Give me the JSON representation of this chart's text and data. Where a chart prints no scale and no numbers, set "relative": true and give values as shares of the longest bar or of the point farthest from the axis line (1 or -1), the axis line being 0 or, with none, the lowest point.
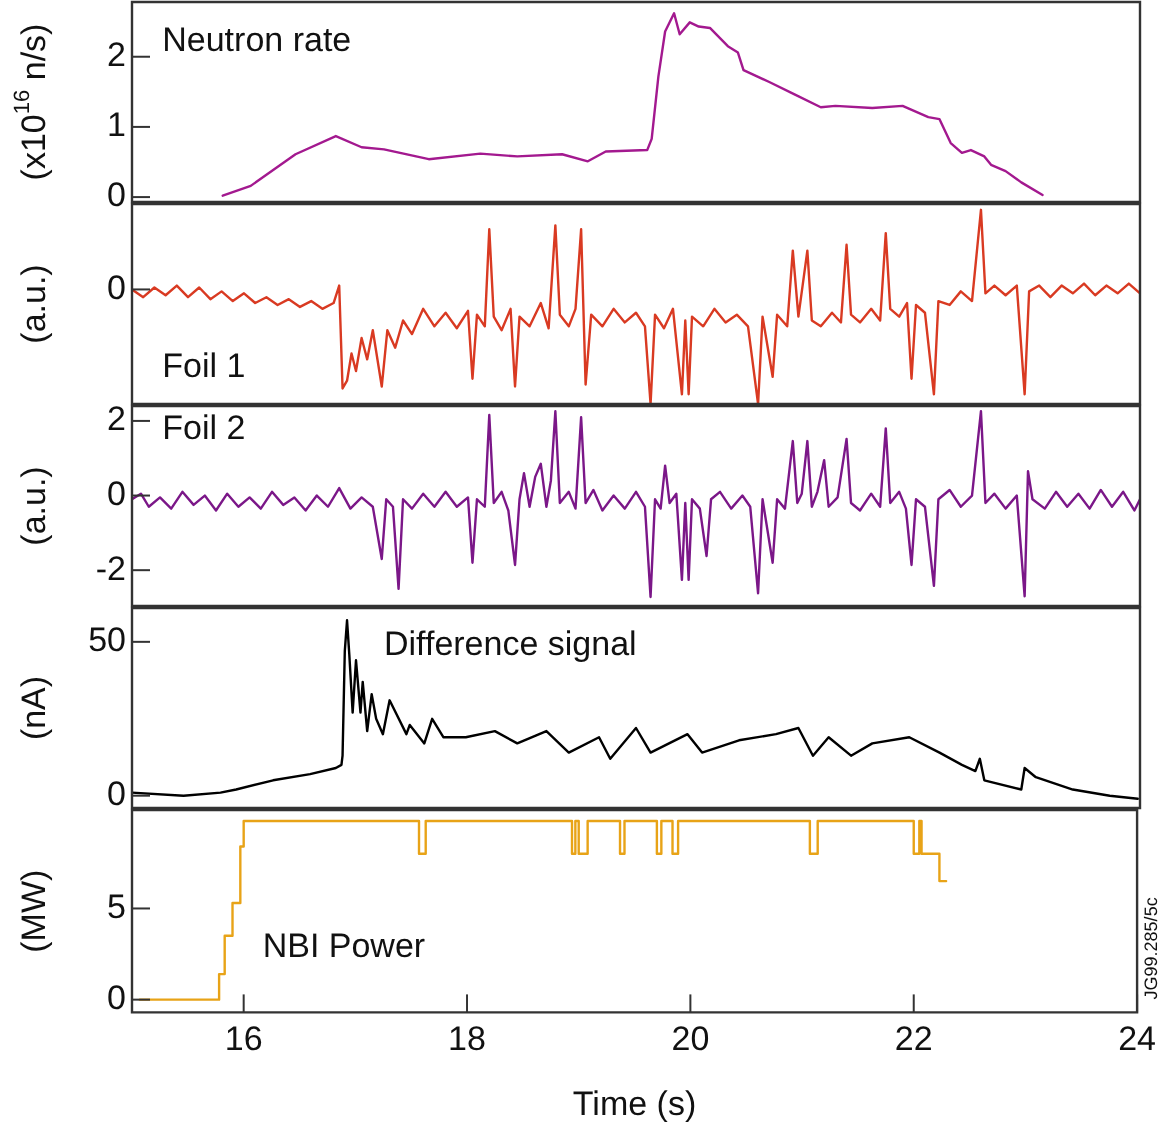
{
  "chart_data": [
    {
      "type": "line",
      "ylabel": "(x10$^{16}$ n/s)",
      "xlim": [
        15,
        24
      ],
      "xticks": [
        16,
        18,
        20,
        22,
        24
      ],
      "ylim": [
        -0.07,
        2.78
      ],
      "yticks": [
        0,
        1,
        2
      ],
      "tick_labels": "y",
      "series": [
        {
          "name": "Neutron rate",
          "color": "#a3198f",
          "x": [
            15.81,
            16.06,
            16.46,
            16.82,
            17.05,
            17.25,
            17.65,
            18.11,
            18.44,
            18.84,
            19.07,
            19.23,
            19.6,
            19.64,
            19.7,
            19.76,
            19.84,
            19.89,
            19.98,
            20.06,
            20.16,
            20.32,
            20.41,
            20.46,
            20.69,
            20.92,
            21.15,
            21.28,
            21.61,
            21.88,
            22.11,
            22.21,
            22.31,
            22.41,
            22.49,
            22.61,
            22.67,
            22.8,
            22.94,
            23.13
          ],
          "values": [
            0.02,
            0.16,
            0.61,
            0.87,
            0.71,
            0.68,
            0.54,
            0.62,
            0.58,
            0.61,
            0.51,
            0.65,
            0.67,
            0.83,
            1.72,
            2.36,
            2.62,
            2.32,
            2.49,
            2.43,
            2.41,
            2.15,
            2.06,
            1.81,
            1.64,
            1.46,
            1.28,
            1.3,
            1.27,
            1.3,
            1.14,
            1.11,
            0.77,
            0.63,
            0.67,
            0.58,
            0.46,
            0.37,
            0.21,
            0.03
          ]
        }
      ]
    },
    {
      "type": "line",
      "ylabel": "(a.u.)",
      "relative": true,
      "xlim": [
        15,
        24
      ],
      "xticks": [
        16,
        18,
        20,
        22,
        24
      ],
      "tick_labels": "y",
      "annotations": [
        "0"
      ],
      "series": [
        {
          "name": "Foil 1",
          "color": "#d93a22",
          "x": [
            15.0,
            15.1,
            15.2,
            15.3,
            15.4,
            15.5,
            15.6,
            15.7,
            15.8,
            15.9,
            16.0,
            16.1,
            16.2,
            16.3,
            16.4,
            16.5,
            16.6,
            16.7,
            16.8,
            16.85,
            16.88,
            16.92,
            16.96,
            17.0,
            17.05,
            17.1,
            17.15,
            17.23,
            17.28,
            17.35,
            17.42,
            17.5,
            17.6,
            17.7,
            17.8,
            17.9,
            18.0,
            18.04,
            18.08,
            18.15,
            18.19,
            18.23,
            18.3,
            18.38,
            18.42,
            18.46,
            18.55,
            18.65,
            18.72,
            18.78,
            18.82,
            18.9,
            18.96,
            19.01,
            19.05,
            19.1,
            19.2,
            19.3,
            19.4,
            19.5,
            19.58,
            19.63,
            19.67,
            19.75,
            19.83,
            19.91,
            19.94,
            19.97,
            20.0,
            20.1,
            20.2,
            20.3,
            20.4,
            20.5,
            20.59,
            20.63,
            20.72,
            20.76,
            20.85,
            20.9,
            20.95,
            21.03,
            21.07,
            21.15,
            21.25,
            21.33,
            21.38,
            21.42,
            21.5,
            21.6,
            21.68,
            21.73,
            21.77,
            21.85,
            21.92,
            21.96,
            22.0,
            22.08,
            22.16,
            22.2,
            22.3,
            22.4,
            22.5,
            22.58,
            22.62,
            22.7,
            22.8,
            22.9,
            22.97,
            23.01,
            23.1,
            23.2,
            23.3,
            23.4,
            23.5,
            23.6,
            23.7,
            23.8,
            23.9,
            24.0
          ],
          "values": [
            0.59,
            0.55,
            0.6,
            0.56,
            0.61,
            0.55,
            0.6,
            0.54,
            0.58,
            0.53,
            0.57,
            0.52,
            0.55,
            0.51,
            0.54,
            0.5,
            0.53,
            0.49,
            0.52,
            0.61,
            0.08,
            0.12,
            0.26,
            0.17,
            0.34,
            0.23,
            0.38,
            0.09,
            0.38,
            0.29,
            0.43,
            0.36,
            0.49,
            0.4,
            0.47,
            0.39,
            0.48,
            0.13,
            0.46,
            0.4,
            0.9,
            0.45,
            0.38,
            0.49,
            0.09,
            0.45,
            0.4,
            0.52,
            0.39,
            0.92,
            0.46,
            0.4,
            0.49,
            0.9,
            0.1,
            0.46,
            0.4,
            0.49,
            0.42,
            0.47,
            0.4,
            0,
            0.46,
            0.39,
            0.49,
            0.05,
            0.43,
            0.05,
            0.45,
            0.4,
            0.49,
            0.42,
            0.46,
            0.4,
            0,
            0.45,
            0.14,
            0.46,
            0.4,
            0.79,
            0.45,
            0.79,
            0.43,
            0.4,
            0.47,
            0.42,
            0.82,
            0.46,
            0.42,
            0.49,
            0.43,
            0.88,
            0.49,
            0.45,
            0.52,
            0.13,
            0.51,
            0.47,
            0.05,
            0.53,
            0.51,
            0.58,
            0.53,
            1,
            0.57,
            0.61,
            0.56,
            0.61,
            0.05,
            0.58,
            0.61,
            0.55,
            0.61,
            0.57,
            0.62,
            0.56,
            0.61,
            0.57,
            0.62,
            0.57
          ]
        }
      ]
    },
    {
      "type": "line",
      "ylabel": "(a.u.)",
      "xlim": [
        15,
        24
      ],
      "xticks": [
        16,
        18,
        20,
        22,
        24
      ],
      "ylim": [
        -2.96,
        2.4
      ],
      "yticks": [
        -2,
        0,
        2
      ],
      "tick_labels": "y",
      "series": [
        {
          "name": "Foil 2",
          "color": "#7b1788",
          "x": [
            15.0,
            15.08,
            15.15,
            15.25,
            15.35,
            15.45,
            15.55,
            15.65,
            15.75,
            15.85,
            15.95,
            16.05,
            16.15,
            16.25,
            16.35,
            16.45,
            16.55,
            16.65,
            16.75,
            16.85,
            16.95,
            17.05,
            17.15,
            17.23,
            17.27,
            17.33,
            17.38,
            17.42,
            17.5,
            17.6,
            17.7,
            17.8,
            17.9,
            18.0,
            18.04,
            18.08,
            18.15,
            18.19,
            18.23,
            18.3,
            18.36,
            18.42,
            18.46,
            18.5,
            18.55,
            18.6,
            18.65,
            18.7,
            18.74,
            18.78,
            18.82,
            18.9,
            18.96,
            19.01,
            19.05,
            19.12,
            19.2,
            19.3,
            19.4,
            19.5,
            19.58,
            19.63,
            19.67,
            19.72,
            19.76,
            19.8,
            19.86,
            19.91,
            19.94,
            19.97,
            20.0,
            20.07,
            20.13,
            20.17,
            20.25,
            20.35,
            20.45,
            20.52,
            20.59,
            20.63,
            20.72,
            20.76,
            20.83,
            20.9,
            20.94,
            20.98,
            21.03,
            21.07,
            21.12,
            21.18,
            21.22,
            21.3,
            21.38,
            21.42,
            21.5,
            21.6,
            21.68,
            21.73,
            21.77,
            21.85,
            21.91,
            21.96,
            22.0,
            22.08,
            22.16,
            22.2,
            22.3,
            22.4,
            22.5,
            22.58,
            22.62,
            22.7,
            22.8,
            22.9,
            22.97,
            23.0,
            23.04,
            23.15,
            23.25,
            23.35,
            23.45,
            23.55,
            23.65,
            23.75,
            23.85,
            23.95,
            24.0
          ],
          "values": [
            -0.1,
            0.05,
            -0.3,
            -0.05,
            -0.35,
            0.1,
            -0.25,
            0.0,
            -0.4,
            0.05,
            -0.3,
            -0.05,
            -0.35,
            0.1,
            -0.25,
            -0.05,
            -0.4,
            0.0,
            -0.3,
            0.2,
            -0.35,
            -0.05,
            -0.3,
            -1.7,
            -0.1,
            -0.3,
            -2.5,
            -0.1,
            -0.35,
            0.05,
            -0.3,
            0.1,
            -0.3,
            -0.05,
            -1.8,
            -0.1,
            -0.3,
            2.16,
            -0.2,
            0.1,
            -0.4,
            -1.86,
            -0.1,
            0.6,
            -0.3,
            0.5,
            0.85,
            -0.3,
            0.4,
            2.26,
            -0.2,
            0.1,
            -0.35,
            2.1,
            -0.2,
            0.15,
            -0.4,
            0.0,
            -0.35,
            0.1,
            -0.3,
            -2.72,
            -0.1,
            -0.35,
            0.8,
            -0.2,
            0.05,
            -2.26,
            -0.2,
            -2.26,
            -0.1,
            -0.35,
            -1.62,
            -0.1,
            0.1,
            -0.35,
            0.0,
            -0.3,
            -2.62,
            -0.1,
            -1.8,
            -0.1,
            -0.35,
            1.46,
            -0.2,
            0.05,
            1.46,
            -0.3,
            0.1,
            0.95,
            -0.3,
            -0.05,
            1.52,
            -0.2,
            -0.4,
            0.05,
            -0.3,
            1.8,
            -0.2,
            0.1,
            -0.35,
            -1.86,
            -0.1,
            -0.3,
            -2.42,
            -0.1,
            0.15,
            -0.3,
            0.0,
            2.26,
            -0.2,
            0.05,
            -0.35,
            0.0,
            -2.7,
            0.65,
            -0.1,
            -0.35,
            0.1,
            -0.3,
            0.05,
            -0.35,
            0.15,
            -0.3,
            0.1,
            -0.4,
            -0.1
          ]
        }
      ]
    },
    {
      "type": "line",
      "ylabel": "(nA)",
      "xlim": [
        15,
        24
      ],
      "xticks": [
        16,
        18,
        20,
        22,
        24
      ],
      "ylim": [
        -4,
        61
      ],
      "yticks": [
        0,
        50
      ],
      "tick_labels": "y",
      "series": [
        {
          "name": "Difference signal",
          "color": "#000000",
          "x": [
            15.0,
            15.46,
            15.79,
            15.93,
            16.26,
            16.59,
            16.82,
            16.87,
            16.88,
            16.9,
            16.92,
            16.94,
            16.97,
            17.0,
            17.04,
            17.06,
            17.1,
            17.14,
            17.18,
            17.24,
            17.3,
            17.45,
            17.48,
            17.61,
            17.68,
            17.78,
            17.98,
            18.24,
            18.44,
            18.7,
            18.9,
            19.17,
            19.27,
            19.5,
            19.63,
            19.96,
            20.09,
            20.42,
            20.75,
            20.95,
            21.08,
            21.22,
            21.42,
            21.61,
            21.94,
            22.21,
            22.41,
            22.53,
            22.57,
            22.61,
            22.94,
            22.97,
            23.07,
            23.4,
            23.73,
            23.98
          ],
          "values": [
            1,
            0,
            1,
            2,
            5,
            7,
            9,
            10,
            13,
            47,
            57,
            46,
            27,
            44,
            27,
            37,
            21,
            33,
            25,
            20,
            31,
            20,
            23,
            17,
            25,
            19,
            19,
            21,
            17,
            21,
            14,
            19,
            12,
            22,
            14,
            20,
            14,
            18,
            20,
            22,
            13,
            19,
            13,
            17,
            19,
            14,
            10,
            8,
            12,
            5,
            2,
            9,
            6,
            2,
            0,
            -1
          ]
        }
      ]
    },
    {
      "type": "step",
      "ylabel": "(MW)",
      "xlabel": "Time (s)",
      "xlim": [
        15,
        24
      ],
      "xticks": [
        16,
        18,
        20,
        22,
        24
      ],
      "ylim": [
        -0.7,
        10.4
      ],
      "yticks": [
        0,
        5
      ],
      "annotations": [
        "JG99.285/5c"
      ],
      "series": [
        {
          "name": "NBI Power",
          "color": "#e8a317",
          "x": [
            15.07,
            15.78,
            15.83,
            15.9,
            15.97,
            16.0,
            17.57,
            17.63,
            18.94,
            18.97,
            19.0,
            19.08,
            19.37,
            19.41,
            19.7,
            19.74,
            19.84,
            19.89,
            21.07,
            21.14,
            22.0,
            22.05,
            22.07,
            22.23,
            22.29
          ],
          "values": [
            0,
            1.4,
            3.5,
            5.3,
            8.4,
            9.8,
            8.0,
            9.8,
            8.0,
            9.8,
            8.0,
            9.8,
            8.0,
            9.8,
            8.0,
            9.8,
            8.0,
            9.8,
            8.0,
            9.8,
            8.0,
            9.8,
            8.0,
            6.5,
            6.5
          ]
        }
      ]
    }
  ]
}
